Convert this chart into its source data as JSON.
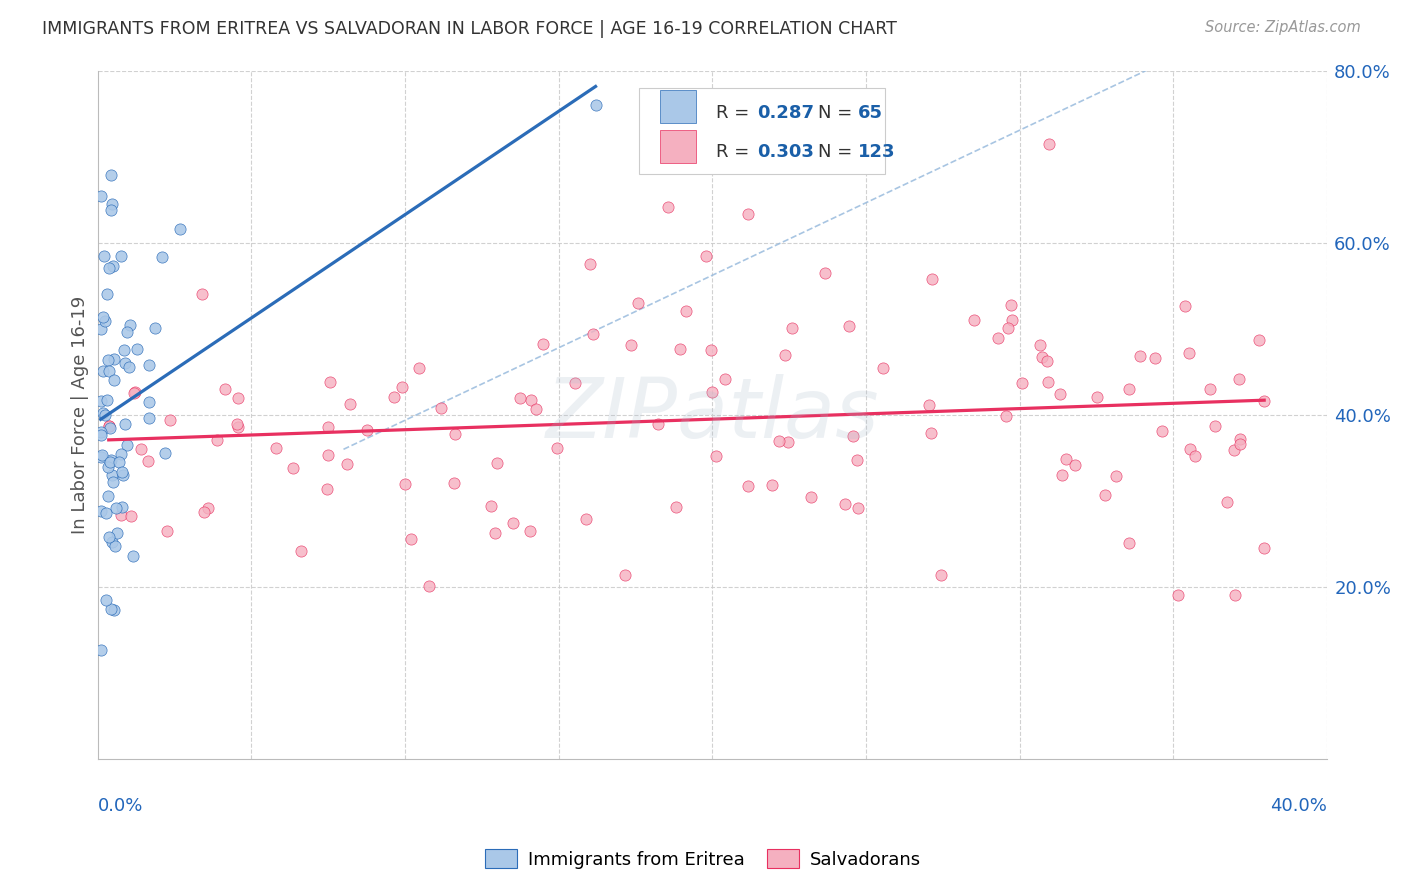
{
  "title": "IMMIGRANTS FROM ERITREA VS SALVADORAN IN LABOR FORCE | AGE 16-19 CORRELATION CHART",
  "source": "Source: ZipAtlas.com",
  "ylabel_label": "In Labor Force | Age 16-19",
  "xmin": 0.0,
  "xmax": 0.4,
  "ymin": 0.0,
  "ymax": 0.8,
  "blue_R": 0.287,
  "blue_N": 65,
  "pink_R": 0.303,
  "pink_N": 123,
  "blue_scatter_color": "#aac8e8",
  "blue_line_color": "#2b6cb8",
  "blue_edge_color": "#2b6cb8",
  "pink_scatter_color": "#f5b0c0",
  "pink_line_color": "#e83060",
  "pink_edge_color": "#e83060",
  "dashed_line_color": "#99bbdd",
  "background_color": "#ffffff",
  "grid_color": "#cccccc",
  "title_color": "#333333",
  "legend_color": "#1a5fa8",
  "axis_label_color": "#2266bb",
  "yticks": [
    0.2,
    0.4,
    0.6,
    0.8
  ],
  "ytick_labels": [
    "20.0%",
    "40.0%",
    "60.0%",
    "80.0%"
  ],
  "xtick_label_left": "0.0%",
  "xtick_label_right": "40.0%",
  "watermark": "ZIPatlas"
}
